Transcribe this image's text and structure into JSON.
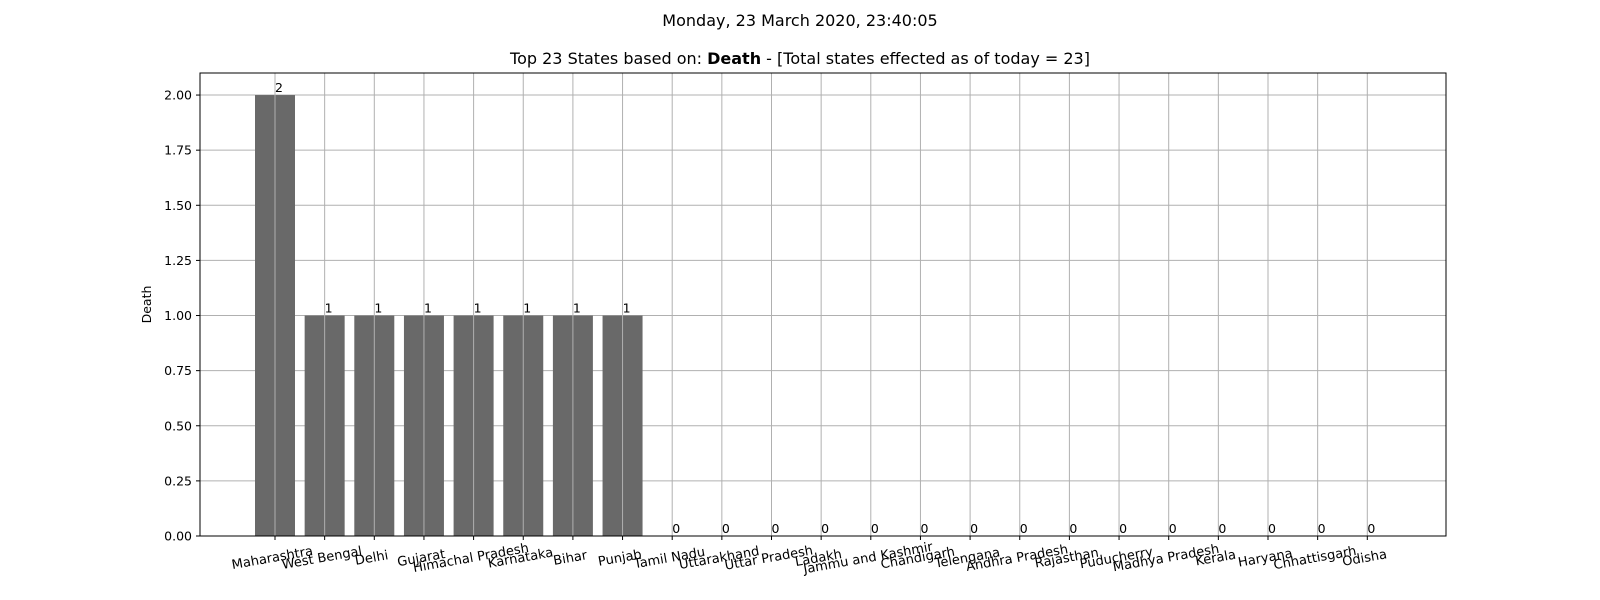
{
  "suptitle": "Monday, 23 March 2020, 23:40:05",
  "title": {
    "prefix": "Top 23 States based on: ",
    "metric": "Death",
    "suffix": " - [Total states effected as of today = 23]"
  },
  "chart_data": {
    "type": "bar",
    "categories": [
      "Maharashtra",
      "West Bengal",
      "Delhi",
      "Gujarat",
      "Himachal Pradesh",
      "Karnataka",
      "Bihar",
      "Punjab",
      "Tamil Nadu",
      "Uttarakhand",
      "Uttar Pradesh",
      "Ladakh",
      "Jammu and Kashmir",
      "Chandigarh",
      "Telengana",
      "Andhra Pradesh",
      "Rajasthan",
      "Puducherry",
      "Madhya Pradesh",
      "Kerala",
      "Haryana",
      "Chhattisgarh",
      "Odisha"
    ],
    "values": [
      2,
      1,
      1,
      1,
      1,
      1,
      1,
      1,
      0,
      0,
      0,
      0,
      0,
      0,
      0,
      0,
      0,
      0,
      0,
      0,
      0,
      0,
      0
    ],
    "ylabel": "Death",
    "xlabel": "",
    "ylim": [
      0,
      2.1
    ],
    "yticks": [
      "0.00",
      "0.25",
      "0.50",
      "0.75",
      "1.00",
      "1.25",
      "1.50",
      "1.75",
      "2.00"
    ],
    "grid": true,
    "bar_color": "#696969",
    "grid_color": "#b0b0b0"
  }
}
